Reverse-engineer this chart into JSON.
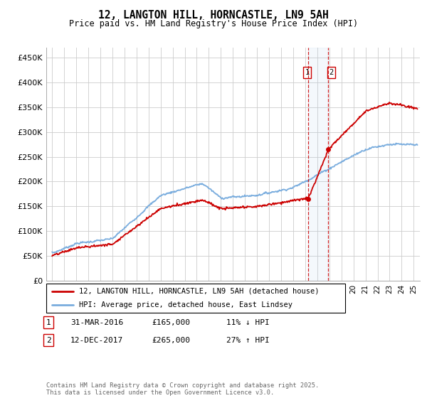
{
  "title": "12, LANGTON HILL, HORNCASTLE, LN9 5AH",
  "subtitle": "Price paid vs. HM Land Registry's House Price Index (HPI)",
  "ylabel_ticks": [
    "£0",
    "£50K",
    "£100K",
    "£150K",
    "£200K",
    "£250K",
    "£300K",
    "£350K",
    "£400K",
    "£450K"
  ],
  "ytick_values": [
    0,
    50000,
    100000,
    150000,
    200000,
    250000,
    300000,
    350000,
    400000,
    450000
  ],
  "ylim": [
    0,
    470000
  ],
  "xlim_start": 1994.5,
  "xlim_end": 2025.5,
  "hpi_color": "#7aadde",
  "price_color": "#cc0000",
  "sale1_date": 2016.25,
  "sale1_price": 165000,
  "sale2_date": 2017.92,
  "sale2_price": 265000,
  "legend_line1": "12, LANGTON HILL, HORNCASTLE, LN9 5AH (detached house)",
  "legend_line2": "HPI: Average price, detached house, East Lindsey",
  "table_row1_num": "1",
  "table_row1_date": "31-MAR-2016",
  "table_row1_price": "£165,000",
  "table_row1_hpi": "11% ↓ HPI",
  "table_row2_num": "2",
  "table_row2_date": "12-DEC-2017",
  "table_row2_price": "£265,000",
  "table_row2_hpi": "27% ↑ HPI",
  "footer": "Contains HM Land Registry data © Crown copyright and database right 2025.\nThis data is licensed under the Open Government Licence v3.0.",
  "background_color": "#ffffff",
  "grid_color": "#cccccc"
}
